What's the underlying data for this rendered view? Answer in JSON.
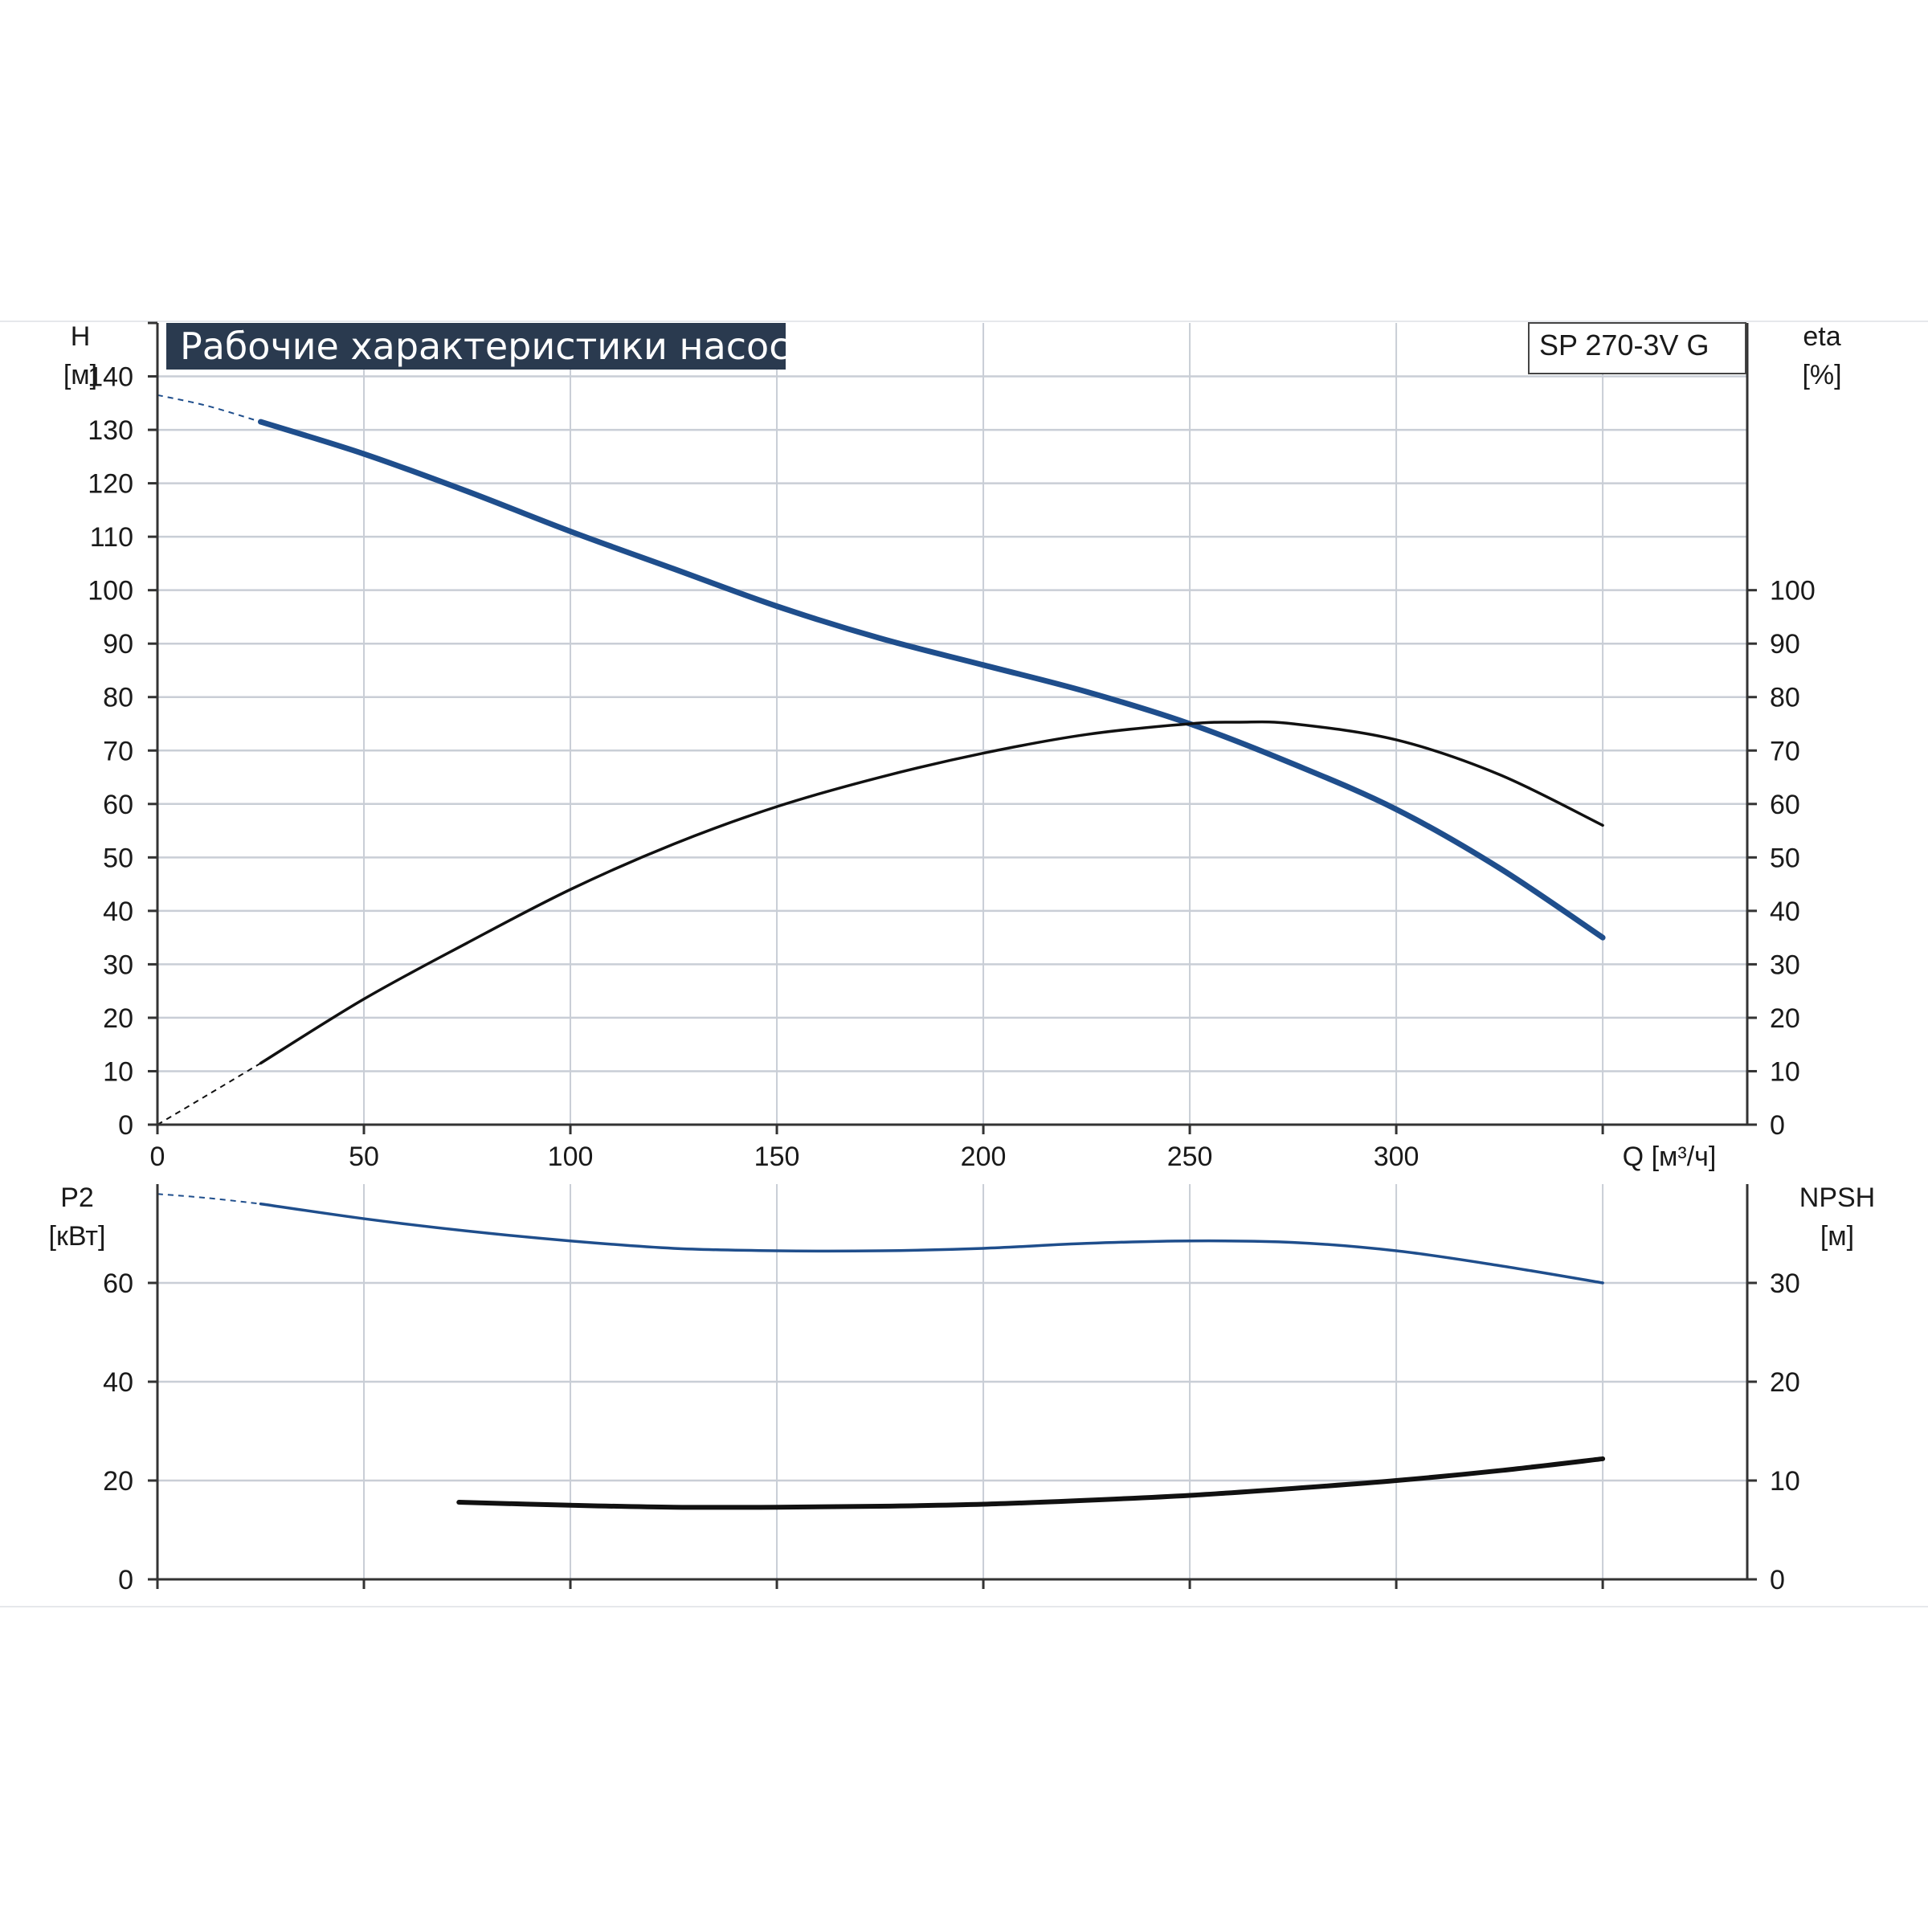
{
  "title": "Рабочие характеристики насоса",
  "model": "SP 270-3V G",
  "colors": {
    "title_bg": "#2a3a4f",
    "head_curve": "#1f4e8c",
    "efficiency_curve": "#111111",
    "p2_curve": "#1f4e8c",
    "npsh_curve": "#111111",
    "grid": "#c9ced6",
    "axis": "#333333"
  },
  "chart_data": [
    {
      "type": "line",
      "panel": "upper",
      "xlabel": "Q [м³/ч]",
      "xlim": [
        0,
        385
      ],
      "xticks": [
        "0",
        "50",
        "100",
        "150",
        "200",
        "250",
        "300"
      ],
      "xtick_values": [
        0,
        50,
        100,
        150,
        200,
        250,
        300
      ],
      "left_axis": {
        "label_line1": "H",
        "label_line2": "[м]",
        "ylim": [
          0,
          150
        ],
        "ticks": [
          "0",
          "10",
          "20",
          "30",
          "40",
          "50",
          "60",
          "70",
          "80",
          "90",
          "100",
          "110",
          "120",
          "130",
          "140"
        ]
      },
      "right_axis": {
        "label_line1": "eta",
        "label_line2": "[%]",
        "ylim": [
          0,
          150
        ],
        "ticks": [
          "0",
          "10",
          "20",
          "30",
          "40",
          "50",
          "60",
          "70",
          "80",
          "90",
          "100"
        ]
      },
      "grid": true,
      "series": [
        {
          "axis": "left",
          "color": "head",
          "x": [
            25,
            50,
            75,
            100,
            125,
            150,
            175,
            200,
            225,
            250,
            275,
            300,
            325,
            350
          ],
          "y": [
            131.5,
            125.5,
            118.5,
            111,
            104,
            97,
            91,
            86,
            81,
            75,
            67.5,
            59,
            48,
            35
          ],
          "extrapolated": {
            "x": [
              0,
              12,
              25
            ],
            "y": [
              136.5,
              134.5,
              131.5
            ]
          }
        },
        {
          "axis": "right",
          "color": "efficiency",
          "x": [
            25,
            50,
            75,
            100,
            125,
            150,
            175,
            200,
            225,
            250,
            262,
            275,
            300,
            325,
            350
          ],
          "y": [
            11.5,
            23.5,
            34,
            44,
            52.5,
            59.5,
            65,
            69.5,
            73,
            75,
            75.3,
            75,
            72,
            65.5,
            56
          ],
          "extrapolated": {
            "x": [
              0,
              12,
              25
            ],
            "y": [
              0,
              5.5,
              11.5
            ]
          }
        }
      ]
    },
    {
      "type": "line",
      "panel": "lower",
      "xlim": [
        0,
        385
      ],
      "left_axis": {
        "label_line1": "P2",
        "label_line2": "[кВт]",
        "ylim": [
          0,
          80
        ],
        "ticks": [
          "0",
          "20",
          "40",
          "60"
        ]
      },
      "right_axis": {
        "label_line1": "NPSH",
        "label_line2": "[м]",
        "ylim": [
          0,
          40
        ],
        "ticks": [
          "0",
          "10",
          "20",
          "30"
        ]
      },
      "grid": true,
      "series": [
        {
          "axis": "left",
          "color": "p2",
          "x": [
            25,
            50,
            75,
            100,
            125,
            150,
            175,
            200,
            225,
            250,
            275,
            300,
            325,
            350
          ],
          "y": [
            76,
            73,
            70.5,
            68.5,
            67,
            66.5,
            66.5,
            67,
            68,
            68.5,
            68.2,
            66.5,
            63.5,
            60
          ],
          "extrapolated": {
            "x": [
              0,
              12,
              25
            ],
            "y": [
              78,
              77.2,
              76
            ]
          }
        },
        {
          "axis": "right",
          "color": "npsh",
          "x": [
            73,
            100,
            125,
            150,
            175,
            200,
            225,
            250,
            275,
            300,
            325,
            350
          ],
          "y": [
            7.8,
            7.5,
            7.3,
            7.3,
            7.4,
            7.6,
            8,
            8.5,
            9.2,
            10,
            11,
            12.2
          ]
        }
      ]
    }
  ]
}
